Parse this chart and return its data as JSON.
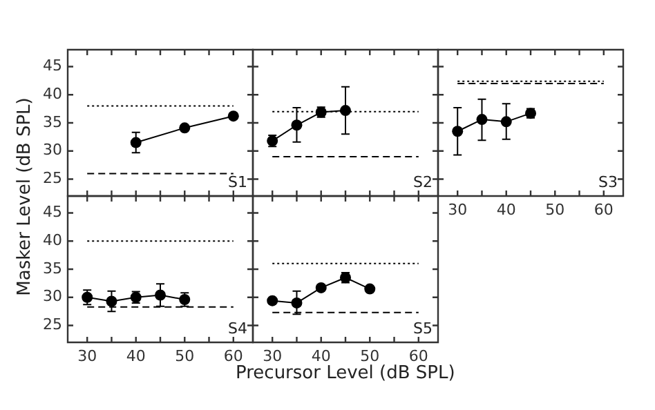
{
  "chart_data": [
    {
      "type": "line",
      "x": [
        40,
        50,
        60
      ],
      "values": [
        31.5,
        34.1,
        36.2
      ],
      "errors": [
        [
          29.7,
          33.3
        ],
        null,
        null
      ],
      "color": "#000000",
      "marker": "circle",
      "line_style": "solid",
      "xlim": [
        26,
        64
      ],
      "ylim": [
        22,
        48
      ],
      "xticks": [
        30,
        {
          "value": 35,
          "label": null
        },
        40,
        {
          "value": 45,
          "label": null
        },
        50,
        {
          "value": 55,
          "label": null
        },
        60
      ],
      "yticks": [
        25,
        30,
        35,
        40,
        45
      ],
      "tick_labels": "y",
      "grid": false,
      "legend": false,
      "annotations": [
        "S1"
      ],
      "ref_lines": [
        {
          "axis": "y",
          "value": 38,
          "line_style": "dotted",
          "color": "#000000"
        },
        {
          "axis": "y",
          "value": 26,
          "line_style": "dashed",
          "color": "#000000"
        }
      ]
    },
    {
      "type": "line",
      "x": [
        30,
        35,
        40,
        45
      ],
      "values": [
        31.8,
        34.6,
        36.9,
        37.2
      ],
      "errors": [
        1,
        [
          31.6,
          37.7
        ],
        0.9,
        [
          33,
          41.4
        ]
      ],
      "color": "#000000",
      "marker": "circle",
      "line_style": "solid",
      "xlim": [
        26,
        64
      ],
      "ylim": [
        22,
        48
      ],
      "xticks": [
        30,
        {
          "value": 35,
          "label": null
        },
        40,
        {
          "value": 45,
          "label": null
        },
        50,
        {
          "value": 55,
          "label": null
        },
        60
      ],
      "yticks": [
        25,
        30,
        35,
        40,
        45
      ],
      "tick_labels": false,
      "grid": false,
      "legend": false,
      "annotations": [
        "S2"
      ],
      "ref_lines": [
        {
          "axis": "y",
          "value": 37,
          "line_style": "dotted",
          "color": "#000000"
        },
        {
          "axis": "y",
          "value": 29,
          "line_style": "dashed",
          "color": "#000000"
        }
      ]
    },
    {
      "type": "line",
      "x": [
        30,
        35,
        40,
        45
      ],
      "values": [
        33.5,
        35.6,
        35.2,
        36.7
      ],
      "errors": [
        [
          29.3,
          37.7
        ],
        [
          31.9,
          39.2
        ],
        [
          32.1,
          38.4
        ],
        0.8
      ],
      "color": "#000000",
      "marker": "circle",
      "line_style": "solid",
      "xlim": [
        26,
        64
      ],
      "ylim": [
        22,
        48
      ],
      "xticks": [
        30,
        {
          "value": 35,
          "label": null
        },
        40,
        {
          "value": 45,
          "label": null
        },
        50,
        {
          "value": 55,
          "label": null
        },
        60
      ],
      "yticks": [
        25,
        30,
        35,
        40,
        45
      ],
      "tick_labels": "x",
      "grid": false,
      "legend": false,
      "annotations": [
        "S3"
      ],
      "ref_lines": [
        {
          "axis": "y",
          "value": 42.4,
          "line_style": "dotted",
          "color": "#000000"
        },
        {
          "axis": "y",
          "value": 42,
          "line_style": "dashed",
          "color": "#000000"
        }
      ]
    },
    {
      "type": "line",
      "x": [
        30,
        35,
        40,
        45,
        50
      ],
      "values": [
        30.0,
        29.3,
        30.0,
        30.4,
        29.6
      ],
      "errors": [
        1.3,
        1.8,
        1,
        2,
        1.2
      ],
      "color": "#000000",
      "marker": "circle",
      "line_style": "solid",
      "xlim": [
        26,
        64
      ],
      "ylim": [
        22,
        48
      ],
      "xticks": [
        30,
        {
          "value": 35,
          "label": null
        },
        40,
        {
          "value": 45,
          "label": null
        },
        50,
        {
          "value": 55,
          "label": null
        },
        60
      ],
      "yticks": [
        25,
        30,
        35,
        40,
        45
      ],
      "grid": false,
      "legend": false,
      "ylabel": "Masker Level (dB SPL)",
      "annotations": [
        "S4"
      ],
      "ref_lines": [
        {
          "axis": "y",
          "value": 40,
          "line_style": "dotted",
          "color": "#000000"
        },
        {
          "axis": "y",
          "value": 28.3,
          "line_style": "dashed",
          "color": "#000000"
        }
      ]
    },
    {
      "type": "line",
      "x": [
        30,
        35,
        40,
        45,
        50
      ],
      "values": [
        29.4,
        29.0,
        31.7,
        33.5,
        31.5
      ],
      "errors": [
        null,
        [
          27,
          31.1
        ],
        null,
        0.9,
        null
      ],
      "color": "#000000",
      "marker": "circle",
      "line_style": "solid",
      "xlim": [
        26,
        64
      ],
      "ylim": [
        22,
        48
      ],
      "xticks": [
        30,
        {
          "value": 35,
          "label": null
        },
        40,
        {
          "value": 45,
          "label": null
        },
        50,
        {
          "value": 55,
          "label": null
        },
        60
      ],
      "yticks": [
        25,
        30,
        35,
        40,
        45
      ],
      "tick_labels": "x",
      "grid": false,
      "legend": false,
      "xlabel": "Precursor Level (dB SPL)",
      "annotations": [
        "S5"
      ],
      "ref_lines": [
        {
          "axis": "y",
          "value": 36,
          "line_style": "dotted",
          "color": "#000000"
        },
        {
          "axis": "y",
          "value": 27.3,
          "line_style": "dashed",
          "color": "#000000"
        }
      ]
    }
  ]
}
